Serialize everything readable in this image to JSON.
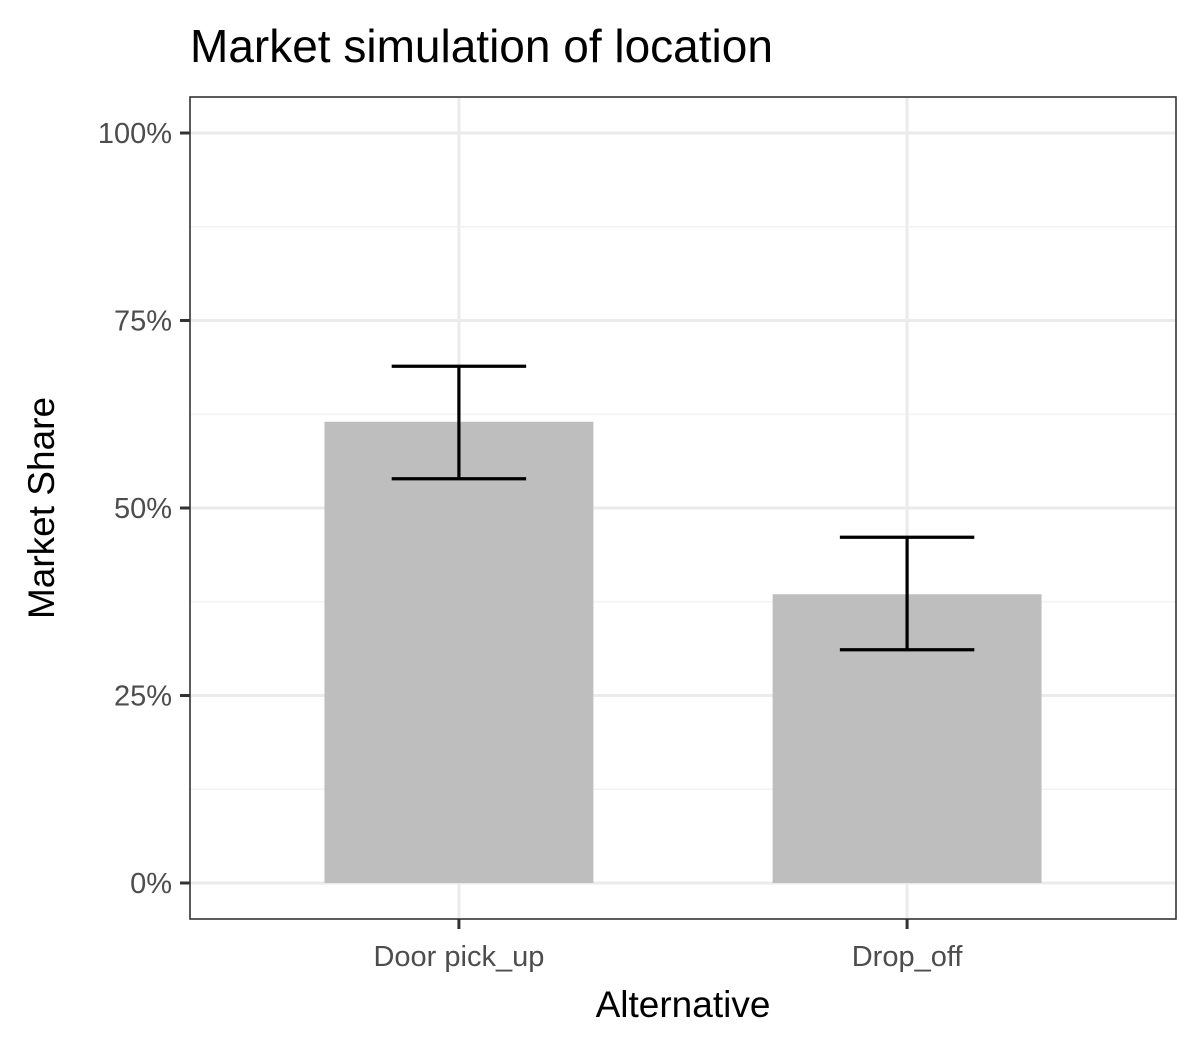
{
  "chart_data": {
    "type": "bar",
    "title": "Market simulation of location",
    "xlabel": "Alternative",
    "ylabel": "Market Share",
    "categories": [
      "Door pick_up",
      "Drop_off"
    ],
    "values": [
      0.615,
      0.385
    ],
    "error_low": [
      0.539,
      0.311
    ],
    "error_high": [
      0.689,
      0.461
    ],
    "ylim": [
      -0.048,
      1.048
    ],
    "y_ticks": [
      0,
      0.25,
      0.5,
      0.75,
      1.0
    ],
    "y_tick_labels": [
      "0%",
      "25%",
      "50%",
      "75%",
      "100%"
    ],
    "grid": true,
    "legend": "none",
    "colors": {
      "bar": "#bebebe",
      "errorbar": "#000000",
      "grid_major": "#ebebeb",
      "grid_minor": "#f3f3f3",
      "panel_border": "#333333",
      "tick_text": "#4d4d4d"
    }
  }
}
